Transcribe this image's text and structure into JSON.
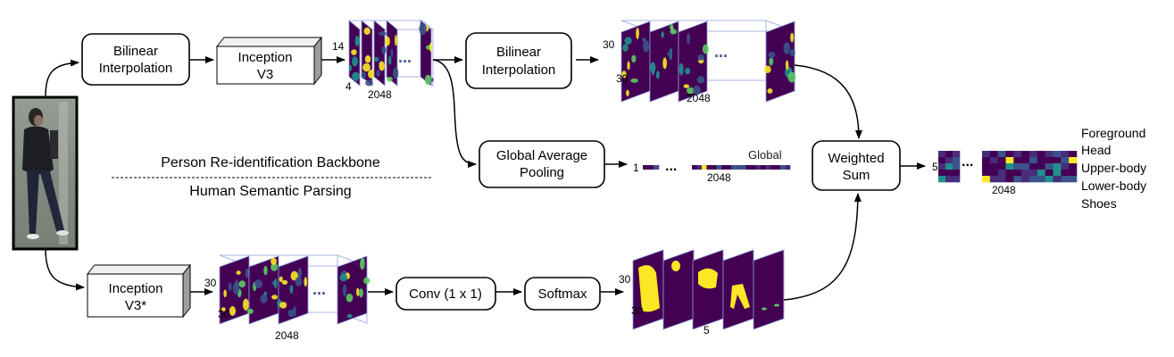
{
  "boxes": {
    "bilinear_top": [
      "Bilinear",
      "Interpolation"
    ],
    "inception_v3": [
      "Inception",
      "V3"
    ],
    "bilinear_right": [
      "Bilinear",
      "Interpolation"
    ],
    "global_avg_pooling": [
      "Global Average",
      "Pooling"
    ],
    "weighted_sum": [
      "Weighted",
      "Sum"
    ],
    "inception_v3_star": [
      "Inception",
      "V3*"
    ],
    "conv": "Conv (1 x 1)",
    "softmax": "Softmax"
  },
  "sections": {
    "top": "Person Re-identification Backbone",
    "bottom": "Human Semantic Parsing"
  },
  "dims": {
    "fm1_h": "14",
    "fm1_w": "4",
    "fm1_c": "2048",
    "fm2_h": "30",
    "fm2_w": "30",
    "fm2_c": "2048",
    "global_n": "1",
    "global_c": "2048",
    "global_label": "Global",
    "fm3_h": "30",
    "fm3_w": "30",
    "fm3_c": "2048",
    "mask_h": "30",
    "mask_w": "30",
    "mask_c": "5",
    "out_n": "5",
    "out_c": "2048"
  },
  "ellipsis": "...",
  "output_labels": [
    "Foreground",
    "Head",
    "Upper-body",
    "Lower-body",
    "Shoes"
  ],
  "colors": {
    "viridis_dark": "#440154",
    "viridis_blue": "#3b528b",
    "viridis_teal": "#21908d",
    "viridis_green": "#5dc963",
    "viridis_yellow": "#fde725"
  },
  "icons": {
    "person_photo": "person-photo-icon"
  }
}
